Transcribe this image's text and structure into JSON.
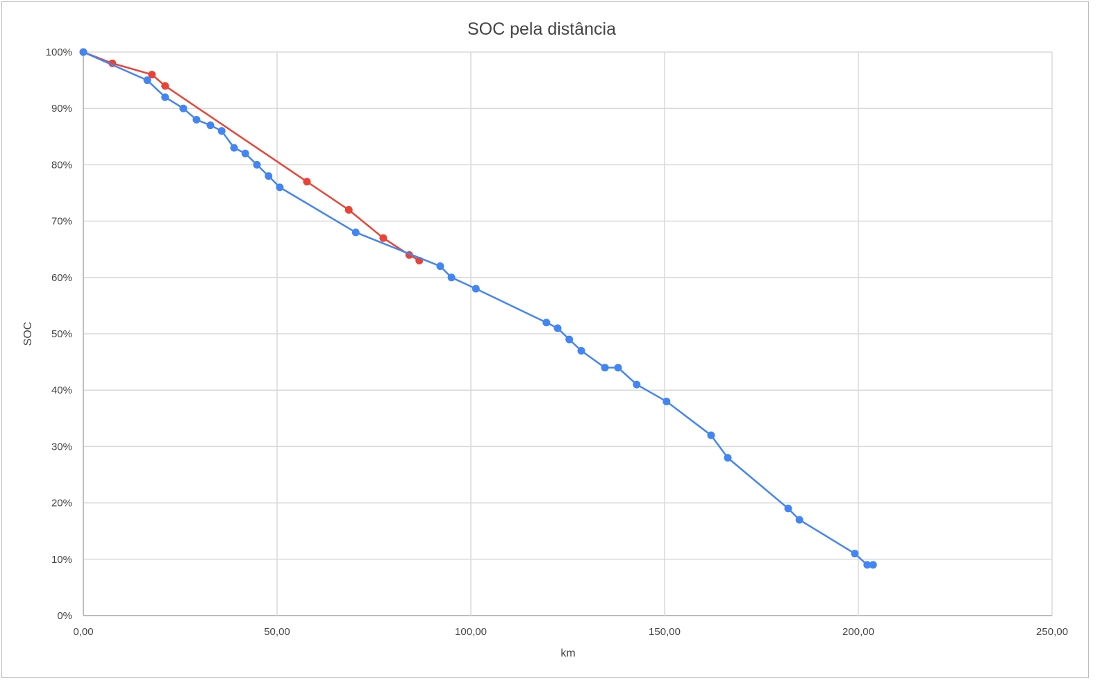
{
  "chart_data": {
    "type": "line",
    "title": "SOC pela distância",
    "xlabel": "km",
    "ylabel": "SOC",
    "xlim": [
      0,
      250
    ],
    "ylim": [
      0,
      100
    ],
    "grid": true,
    "xticks": [
      "0,00",
      "50,00",
      "100,00",
      "150,00",
      "200,00",
      "250,00"
    ],
    "xtick_values": [
      0,
      50,
      100,
      150,
      200,
      250
    ],
    "yticks": [
      "0%",
      "10%",
      "20%",
      "30%",
      "40%",
      "50%",
      "60%",
      "70%",
      "80%",
      "90%",
      "100%"
    ],
    "ytick_values": [
      0,
      10,
      20,
      30,
      40,
      50,
      60,
      70,
      80,
      90,
      100
    ],
    "series": [
      {
        "name": "red",
        "color": "#ea4335",
        "x": [
          0,
          7.5,
          17.7,
          21.1,
          57.7,
          68.5,
          77.4,
          84.1,
          86.7
        ],
        "y": [
          100,
          98,
          96,
          94,
          77,
          72,
          67,
          64,
          63
        ]
      },
      {
        "name": "blue",
        "color": "#4285f4",
        "x": [
          0,
          16.5,
          21.1,
          25.8,
          29.2,
          32.8,
          35.7,
          38.9,
          41.8,
          44.8,
          47.8,
          50.7,
          70.3,
          92.1,
          95.0,
          101.3,
          119.5,
          122.4,
          125.4,
          128.5,
          134.6,
          138.0,
          142.8,
          150.5,
          162.0,
          166.3,
          181.9,
          184.8,
          199.1,
          202.3,
          203.8
        ],
        "y": [
          100,
          95,
          92,
          90,
          88,
          87,
          86,
          83,
          82,
          80,
          78,
          76,
          68,
          62,
          60,
          58,
          52,
          51,
          49,
          47,
          44,
          44,
          41,
          38,
          32,
          28,
          19,
          17,
          11,
          9,
          9
        ]
      }
    ]
  }
}
